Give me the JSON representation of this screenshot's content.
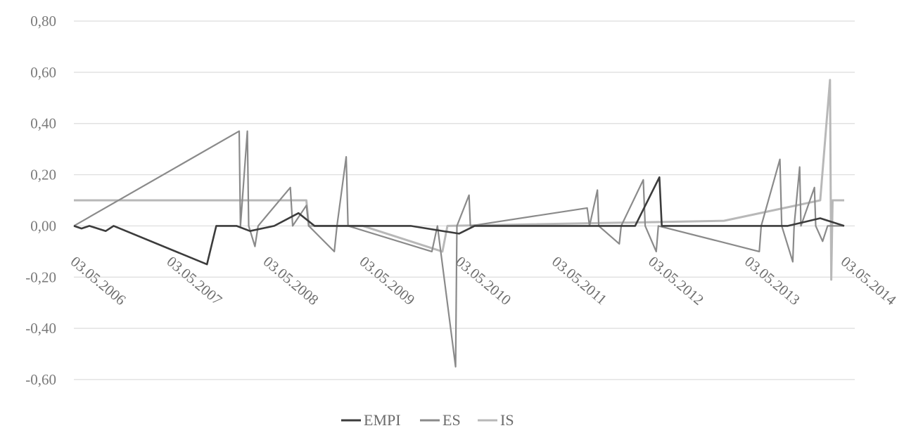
{
  "chart_data": {
    "type": "line",
    "title": "",
    "xlabel": "",
    "ylabel": "",
    "ylim": [
      -0.6,
      0.8
    ],
    "y_ticks": [
      "0,80",
      "0,60",
      "0,40",
      "0,20",
      "0,00",
      "-0,20",
      "-0,40",
      "-0,60"
    ],
    "y_tick_values": [
      0.8,
      0.6,
      0.4,
      0.2,
      0.0,
      -0.2,
      -0.4,
      -0.6
    ],
    "x_ticks": [
      "03.05.2006",
      "03.05.2007",
      "03.05.2008",
      "03.05.2009",
      "03.05.2010",
      "03.05.2011",
      "03.05.2012",
      "03.05.2013",
      "03.05.2014"
    ],
    "grid": true,
    "legend_position": "bottom",
    "colors": {
      "EMPI": "#3c3c3c",
      "ES": "#8a8a8a",
      "IS": "#b8b8b8"
    },
    "series": [
      {
        "name": "EMPI",
        "values": [
          [
            "2006-05-03",
            0.0
          ],
          [
            "2006-06-01",
            -0.01
          ],
          [
            "2006-07-01",
            0.0
          ],
          [
            "2006-09-01",
            -0.02
          ],
          [
            "2006-10-01",
            0.0
          ],
          [
            "2007-09-20",
            -0.15
          ],
          [
            "2007-10-25",
            0.0
          ],
          [
            "2008-01-10",
            0.0
          ],
          [
            "2008-03-01",
            -0.02
          ],
          [
            "2008-06-01",
            0.0
          ],
          [
            "2008-09-01",
            0.05
          ],
          [
            "2008-11-01",
            0.0
          ],
          [
            "2009-05-03",
            0.0
          ],
          [
            "2009-11-01",
            0.0
          ],
          [
            "2010-05-03",
            -0.03
          ],
          [
            "2010-07-01",
            0.0
          ],
          [
            "2011-05-03",
            0.0
          ],
          [
            "2011-08-01",
            0.0
          ],
          [
            "2012-03-01",
            0.0
          ],
          [
            "2012-06-01",
            0.19
          ],
          [
            "2012-06-10",
            0.0
          ],
          [
            "2013-05-03",
            0.0
          ],
          [
            "2013-10-01",
            0.0
          ],
          [
            "2014-02-01",
            0.03
          ],
          [
            "2014-05-03",
            0.0
          ]
        ]
      },
      {
        "name": "ES",
        "values": [
          [
            "2006-05-03",
            0.0
          ],
          [
            "2008-01-20",
            0.37
          ],
          [
            "2008-01-25",
            0.0
          ],
          [
            "2008-02-20",
            0.37
          ],
          [
            "2008-02-25",
            0.0
          ],
          [
            "2008-03-20",
            -0.08
          ],
          [
            "2008-04-01",
            0.0
          ],
          [
            "2008-08-01",
            0.15
          ],
          [
            "2008-08-10",
            0.0
          ],
          [
            "2008-10-01",
            0.08
          ],
          [
            "2008-10-10",
            0.0
          ],
          [
            "2009-01-15",
            -0.1
          ],
          [
            "2009-01-25",
            0.0
          ],
          [
            "2009-03-01",
            0.27
          ],
          [
            "2009-03-08",
            0.0
          ],
          [
            "2010-01-20",
            -0.1
          ],
          [
            "2010-02-10",
            0.0
          ],
          [
            "2010-04-20",
            -0.55
          ],
          [
            "2010-04-25",
            0.0
          ],
          [
            "2010-06-10",
            0.12
          ],
          [
            "2010-06-15",
            0.0
          ],
          [
            "2011-09-01",
            0.07
          ],
          [
            "2011-09-10",
            0.0
          ],
          [
            "2011-10-10",
            0.14
          ],
          [
            "2011-10-15",
            0.0
          ],
          [
            "2012-01-01",
            -0.07
          ],
          [
            "2012-01-08",
            0.0
          ],
          [
            "2012-04-01",
            0.18
          ],
          [
            "2012-04-08",
            0.0
          ],
          [
            "2012-05-20",
            -0.1
          ],
          [
            "2012-05-28",
            0.0
          ],
          [
            "2013-06-15",
            -0.1
          ],
          [
            "2013-06-22",
            0.0
          ],
          [
            "2013-09-01",
            0.26
          ],
          [
            "2013-09-08",
            0.0
          ],
          [
            "2013-10-20",
            -0.14
          ],
          [
            "2013-10-25",
            0.0
          ],
          [
            "2013-11-15",
            0.23
          ],
          [
            "2013-11-20",
            0.0
          ],
          [
            "2014-01-10",
            0.15
          ],
          [
            "2014-01-15",
            0.0
          ],
          [
            "2014-02-10",
            -0.06
          ],
          [
            "2014-03-01",
            0.0
          ],
          [
            "2014-05-03",
            0.0
          ]
        ]
      },
      {
        "name": "IS",
        "values": [
          [
            "2006-05-03",
            0.1
          ],
          [
            "2008-10-01",
            0.1
          ],
          [
            "2008-10-10",
            0.0
          ],
          [
            "2009-05-03",
            0.0
          ],
          [
            "2010-03-01",
            -0.1
          ],
          [
            "2010-03-20",
            0.0
          ],
          [
            "2013-02-01",
            0.02
          ],
          [
            "2014-02-01",
            0.1
          ],
          [
            "2014-03-10",
            0.57
          ],
          [
            "2014-03-15",
            -0.21
          ],
          [
            "2014-03-20",
            0.1
          ],
          [
            "2014-05-03",
            0.1
          ]
        ]
      }
    ]
  }
}
